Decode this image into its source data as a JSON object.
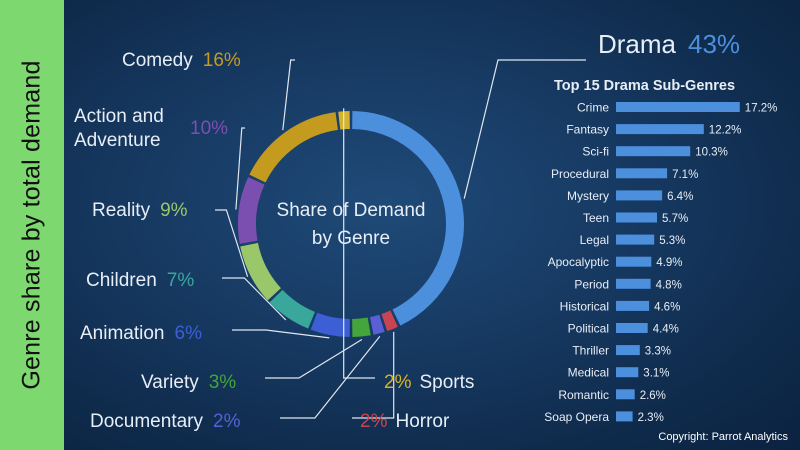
{
  "sidebar_title": "Genre share by total demand",
  "copyright": "Copyright: Parrot Analytics",
  "colors": {
    "background": "#173a63",
    "sidebar": "#7dd86f",
    "bar": "#4b8fdd",
    "label_text": "#e8eef6"
  },
  "chart_data": [
    {
      "type": "pie",
      "variant": "donut",
      "center_label": [
        "Share of Demand",
        "by Genre"
      ],
      "slices": [
        {
          "name": "Drama",
          "value": 43,
          "label": "43%",
          "color": "#4b8fdd"
        },
        {
          "name": "Horror",
          "value": 2,
          "label": "2%",
          "color": "#c94452"
        },
        {
          "name": "Documentary",
          "value": 2,
          "label": "2%",
          "color": "#5a5fd6"
        },
        {
          "name": "Variety",
          "value": 3,
          "label": "3%",
          "color": "#43a53b"
        },
        {
          "name": "Animation",
          "value": 6,
          "label": "6%",
          "color": "#3c5fd6"
        },
        {
          "name": "Children",
          "value": 7,
          "label": "7%",
          "color": "#3aa79c"
        },
        {
          "name": "Reality",
          "value": 9,
          "label": "9%",
          "color": "#9ac76a"
        },
        {
          "name": "Action and Adventure",
          "value": 10,
          "label": "10%",
          "color": "#7a4fb0"
        },
        {
          "name": "Comedy",
          "value": 16,
          "label": "16%",
          "color": "#c49a1f"
        },
        {
          "name": "Sports",
          "value": 2,
          "label": "2%",
          "color": "#d4b32c"
        }
      ]
    },
    {
      "type": "bar",
      "orientation": "horizontal",
      "heading": "Drama",
      "heading_value": "43%",
      "title": "Top 15 Drama Sub-Genres",
      "categories": [
        "Crime",
        "Fantasy",
        "Sci-fi",
        "Procedural",
        "Mystery",
        "Teen",
        "Legal",
        "Apocalyptic",
        "Period",
        "Historical",
        "Political",
        "Thriller",
        "Medical",
        "Romantic",
        "Soap Opera"
      ],
      "values": [
        17.2,
        12.2,
        10.3,
        7.1,
        6.4,
        5.7,
        5.3,
        4.9,
        4.8,
        4.6,
        4.4,
        3.3,
        3.1,
        2.6,
        2.3
      ],
      "value_labels": [
        "17.2%",
        "12.2%",
        "10.3%",
        "7.1%",
        "6.4%",
        "5.7%",
        "5.3%",
        "4.9%",
        "4.8%",
        "4.6%",
        "4.4%",
        "3.3%",
        "3.1%",
        "2.6%",
        "2.3%"
      ]
    }
  ]
}
